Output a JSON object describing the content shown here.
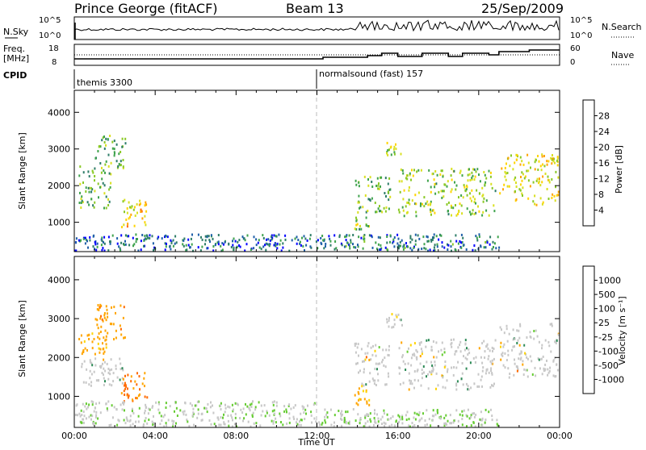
{
  "header": {
    "station": "Prince George (fitACF)",
    "beam": "Beam 13",
    "date": "25/Sep/2009"
  },
  "noise_panel": {
    "left_label": "N.Sky",
    "right_label": "N.Search",
    "left_ticks": [
      "10^5",
      "10^0"
    ],
    "right_ticks": [
      "10^5",
      "10^0"
    ]
  },
  "freq_panel": {
    "left_label_1": "Freq.",
    "left_label_2": "[MHz]",
    "right_label": "Nave",
    "left_ticks": [
      "18",
      "8"
    ],
    "right_ticks": [
      "60",
      "0"
    ]
  },
  "cpid_panel": {
    "label": "CPID",
    "modes": [
      {
        "name": "themis 3300",
        "start_hour": 0
      },
      {
        "name": "normalsound (fast) 157",
        "start_hour": 12
      }
    ]
  },
  "chart_data": [
    {
      "type": "heatmap",
      "panel": "power",
      "ylabel": "Slant Range [km]",
      "xlabel": "",
      "ylim": [
        200,
        4600
      ],
      "y_ticks": [
        1000,
        2000,
        3000,
        4000
      ],
      "xlim": [
        0,
        24
      ],
      "colorbar": {
        "label": "Power [dB]",
        "ticks": [
          "28",
          "24",
          "20",
          "16",
          "12",
          "8",
          "4"
        ],
        "colors": [
          "#ff0000",
          "#ff6a00",
          "#ffa500",
          "#ffd400",
          "#d9e021",
          "#8ac926",
          "#3fa34d",
          "#2e7d68",
          "#1f5fa8",
          "#0000ff"
        ]
      },
      "echo_regions": [
        {
          "t0": 0.2,
          "t1": 1.8,
          "r0": 1400,
          "r1": 2600,
          "level": 12
        },
        {
          "t0": 1.0,
          "t1": 2.5,
          "r0": 2500,
          "r1": 3400,
          "level": 10
        },
        {
          "t0": 2.3,
          "t1": 3.6,
          "r0": 900,
          "r1": 1700,
          "level": 20
        },
        {
          "t0": 0.0,
          "t1": 12.0,
          "r0": 250,
          "r1": 700,
          "level": 5
        },
        {
          "t0": 13.8,
          "t1": 14.6,
          "r0": 800,
          "r1": 1200,
          "level": 14
        },
        {
          "t0": 13.8,
          "t1": 15.6,
          "r0": 1300,
          "r1": 2300,
          "level": 12
        },
        {
          "t0": 15.4,
          "t1": 16.2,
          "r0": 2800,
          "r1": 3200,
          "level": 16
        },
        {
          "t0": 16.0,
          "t1": 20.8,
          "r0": 1200,
          "r1": 2500,
          "level": 14
        },
        {
          "t0": 21.0,
          "t1": 24.0,
          "r0": 1500,
          "r1": 2900,
          "level": 18
        },
        {
          "t0": 12.0,
          "t1": 21.0,
          "r0": 250,
          "r1": 700,
          "level": 6
        }
      ]
    },
    {
      "type": "heatmap",
      "panel": "velocity",
      "ylabel": "Slant Range [km]",
      "xlabel": "Time UT",
      "ylim": [
        200,
        4600
      ],
      "y_ticks": [
        1000,
        2000,
        3000,
        4000
      ],
      "xlim": [
        0,
        24
      ],
      "x_ticks": [
        "00:00",
        "04:00",
        "08:00",
        "12:00",
        "16:00",
        "20:00",
        "00:00"
      ],
      "colorbar": {
        "label": "Velocity [m s⁻¹]",
        "ticks": [
          "1000",
          "500",
          "100",
          "25",
          "-25",
          "-100",
          "-500",
          "-1000"
        ],
        "colors": [
          "#0000ff",
          "#1f5fa8",
          "#2e8b57",
          "#66cc33",
          "#c8c8c8",
          "#c8c8c8",
          "#ffd400",
          "#ffa500",
          "#ff6a00",
          "#ff0000"
        ]
      },
      "echo_regions": [
        {
          "t0": 0.2,
          "t1": 1.6,
          "r0": 2100,
          "r1": 2700,
          "level": -250
        },
        {
          "t0": 0.2,
          "t1": 2.4,
          "r0": 1300,
          "r1": 2000,
          "level": 0
        },
        {
          "t0": 1.0,
          "t1": 2.5,
          "r0": 2500,
          "r1": 3400,
          "level": -300
        },
        {
          "t0": 2.3,
          "t1": 3.6,
          "r0": 900,
          "r1": 1700,
          "level": -400
        },
        {
          "t0": 0.0,
          "t1": 12.0,
          "r0": 250,
          "r1": 900,
          "level": 50
        },
        {
          "t0": 13.8,
          "t1": 15.6,
          "r0": 1300,
          "r1": 2400,
          "level": 0
        },
        {
          "t0": 13.8,
          "t1": 14.6,
          "r0": 800,
          "r1": 1300,
          "level": -200
        },
        {
          "t0": 15.4,
          "t1": 16.2,
          "r0": 2800,
          "r1": 3200,
          "level": 0
        },
        {
          "t0": 16.0,
          "t1": 20.8,
          "r0": 1200,
          "r1": 2500,
          "level": 0
        },
        {
          "t0": 21.0,
          "t1": 24.0,
          "r0": 1500,
          "r1": 2900,
          "level": 0
        },
        {
          "t0": 12.0,
          "t1": 21.0,
          "r0": 250,
          "r1": 700,
          "level": 60
        }
      ]
    }
  ]
}
